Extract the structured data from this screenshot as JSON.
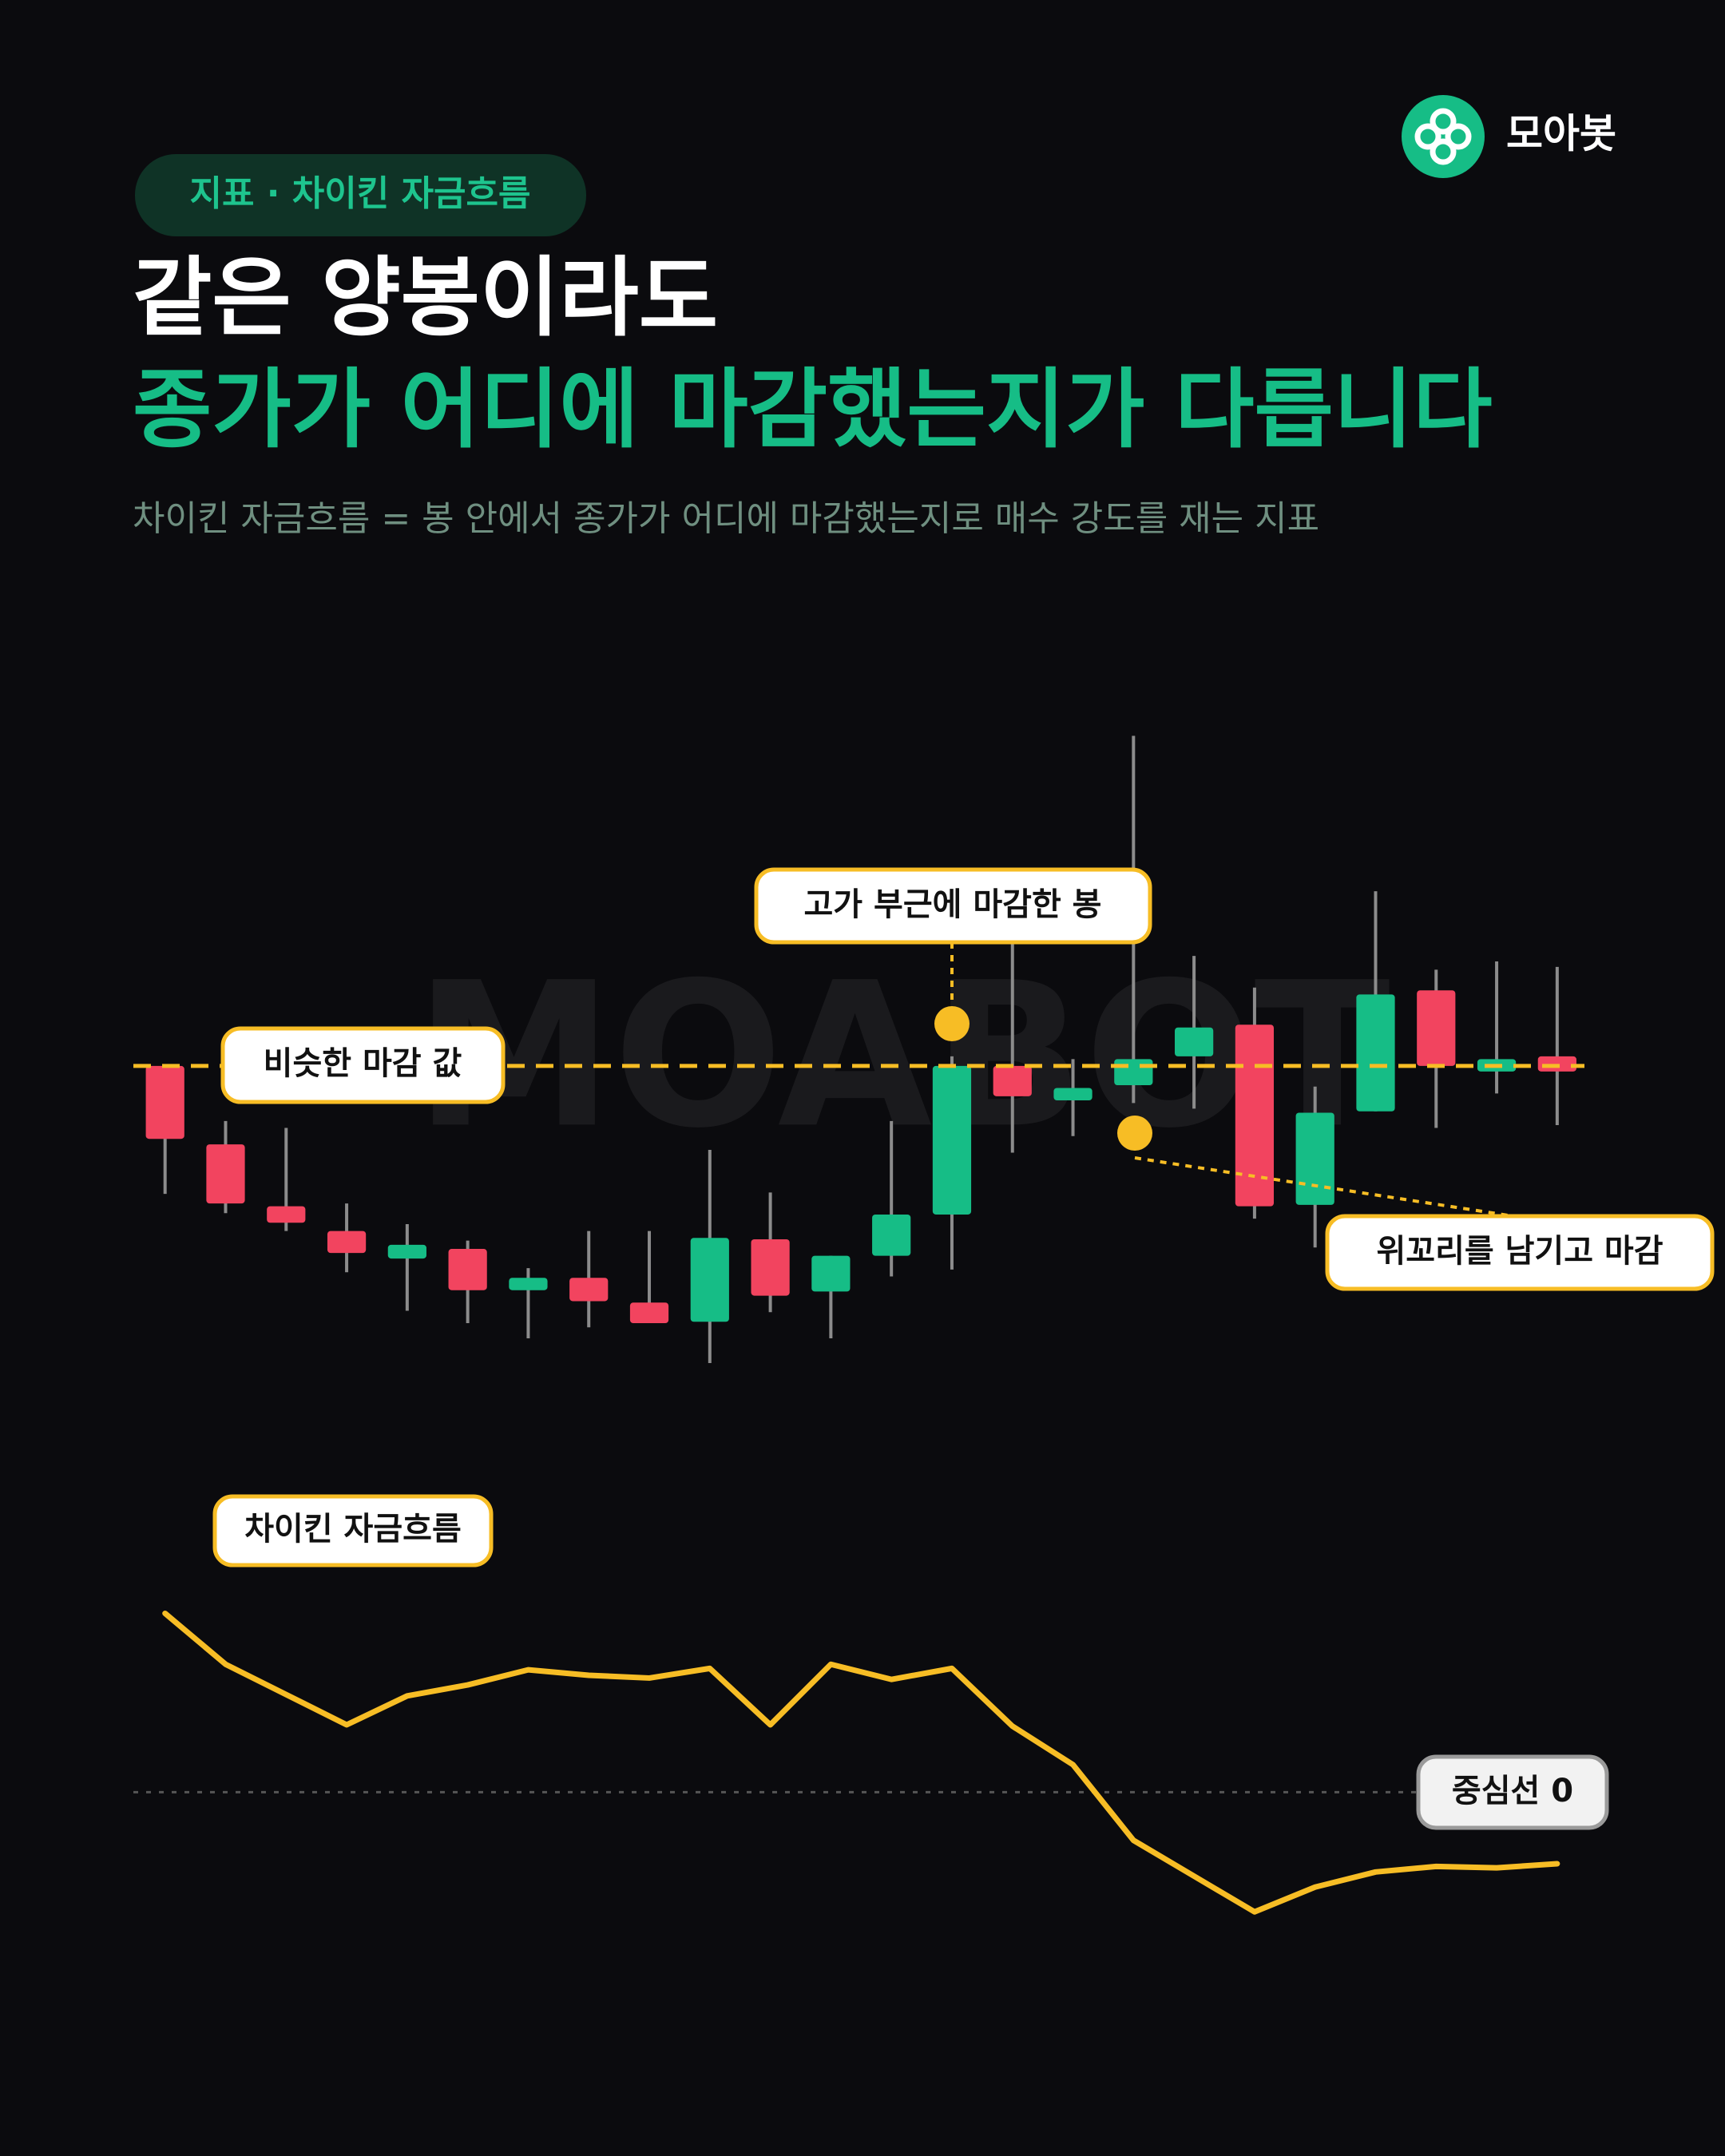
{
  "header": {
    "brand": "모아봇",
    "tag": "지표 · 차이킨 자금흐름",
    "title_line1": "같은 양봉이라도",
    "title_line2": "종가가 어디에 마감했는지가 다릅니다",
    "subtitle": "차이킨 자금흐름 = 봉 안에서 종가가 어디에 마감했는지로 매수 강도를 재는 지표",
    "watermark": "MOABOT"
  },
  "chart_data": [
    {
      "type": "candlestick",
      "up_color": "#16bd86",
      "down_color": "#f2445f",
      "wick_color": "#8c8c8c",
      "ylim": [
        0,
        500
      ],
      "reference_line": 225,
      "reference_color": "#f7bd25",
      "open": [
        225,
        168,
        123,
        105,
        85,
        92,
        62,
        71,
        53,
        39,
        99,
        61,
        87,
        117,
        225,
        200,
        211,
        232,
        255,
        124,
        192,
        280,
        221,
        232
      ],
      "high": [
        225,
        185,
        180,
        125,
        110,
        98,
        78,
        105,
        105,
        164,
        133,
        87,
        185,
        232,
        315,
        230,
        465,
        305,
        282,
        210,
        352,
        295,
        301,
        297
      ],
      "low": [
        132,
        118,
        105,
        75,
        47,
        38,
        27,
        35,
        38,
        9,
        46,
        27,
        72,
        77,
        162,
        174,
        198,
        194,
        114,
        93,
        192,
        180,
        205,
        182
      ],
      "close": [
        172,
        125,
        111,
        89,
        95,
        62,
        71,
        54,
        38,
        100,
        58,
        87,
        117,
        225,
        203,
        209,
        230,
        253,
        123,
        191,
        277,
        225,
        230,
        221
      ],
      "annotations": [
        "고가 부근에 마감한 봉",
        "비슷한 마감 값",
        "위꼬리를 남기고 마감"
      ]
    },
    {
      "type": "line",
      "name": "차이킨 자금흐름",
      "color": "#f7bd25",
      "ylim": [
        -120,
        160
      ],
      "zero_line": 0,
      "zero_label": "중심선 0",
      "values": [
        130,
        93,
        71,
        49,
        70,
        78,
        89,
        85,
        83,
        90,
        49,
        93,
        82,
        90,
        48,
        20,
        -35,
        -61,
        -87,
        -69,
        -58,
        -54,
        -55,
        -52
      ]
    }
  ]
}
